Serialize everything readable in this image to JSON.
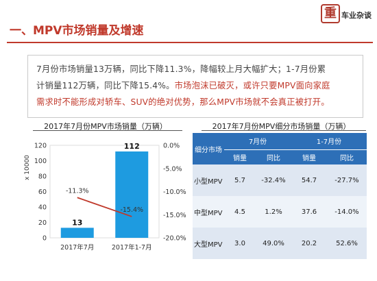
{
  "header": {
    "title": "一、MPV市场销量及增速",
    "logo_text": "车业杂谈",
    "logo_char": "重"
  },
  "summary": {
    "line1": "7月份市场销量13万辆，同比下降11.3%，降幅较上月大幅扩大；1-7月份累",
    "line2a": "计销量112万辆，同比下降15.4%。",
    "line2b": "市场泡沫已破灭，或许只要MPV面向家庭",
    "line3": "需求时不能形成对轿车、SUV的绝对优势，那么MPV市场就不会真正被打开。"
  },
  "chart_data": {
    "type": "bar",
    "title": "2017年7月份MPV市场销量（万辆）",
    "categories": [
      "2017年7月",
      "2017年1-7月"
    ],
    "series": [
      {
        "values": [
          13,
          112
        ],
        "kind": "bar",
        "axis": "left",
        "color": "#1e9be0",
        "data_labels": [
          "13",
          "112"
        ]
      },
      {
        "values": [
          -11.3,
          -15.4
        ],
        "kind": "line",
        "axis": "right",
        "color": "#c0392b",
        "data_labels": [
          "-11.3%",
          "-15.4%"
        ]
      }
    ],
    "y_left": {
      "label": "x 10000",
      "ylim": [
        0,
        120
      ],
      "ticks": [
        "0",
        "20",
        "40",
        "60",
        "80",
        "100",
        "120"
      ]
    },
    "y_right": {
      "ylim": [
        -20,
        0
      ],
      "ticks": [
        "0.0%",
        "-5.0%",
        "-10.0%",
        "-15.0%",
        "-20.0%"
      ]
    },
    "grid": false
  },
  "table": {
    "title": "2017年7月份MPV细分市场销量（万辆）",
    "col_segment": "细分市场",
    "group_july": "7月份",
    "group_ytd": "1-7月份",
    "sub_sales": "销量",
    "sub_yoy": "同比",
    "rows": [
      {
        "segment": "小型MPV",
        "jul_sales": "5.7",
        "jul_yoy": "-32.4%",
        "ytd_sales": "54.7",
        "ytd_yoy": "-27.7%"
      },
      {
        "segment": "中型MPV",
        "jul_sales": "4.5",
        "jul_yoy": "1.2%",
        "ytd_sales": "37.6",
        "ytd_yoy": "-14.0%"
      },
      {
        "segment": "大型MPV",
        "jul_sales": "3.0",
        "jul_yoy": "49.0%",
        "ytd_sales": "20.2",
        "ytd_yoy": "52.6%"
      }
    ],
    "header_color": "#2d6fb7"
  }
}
